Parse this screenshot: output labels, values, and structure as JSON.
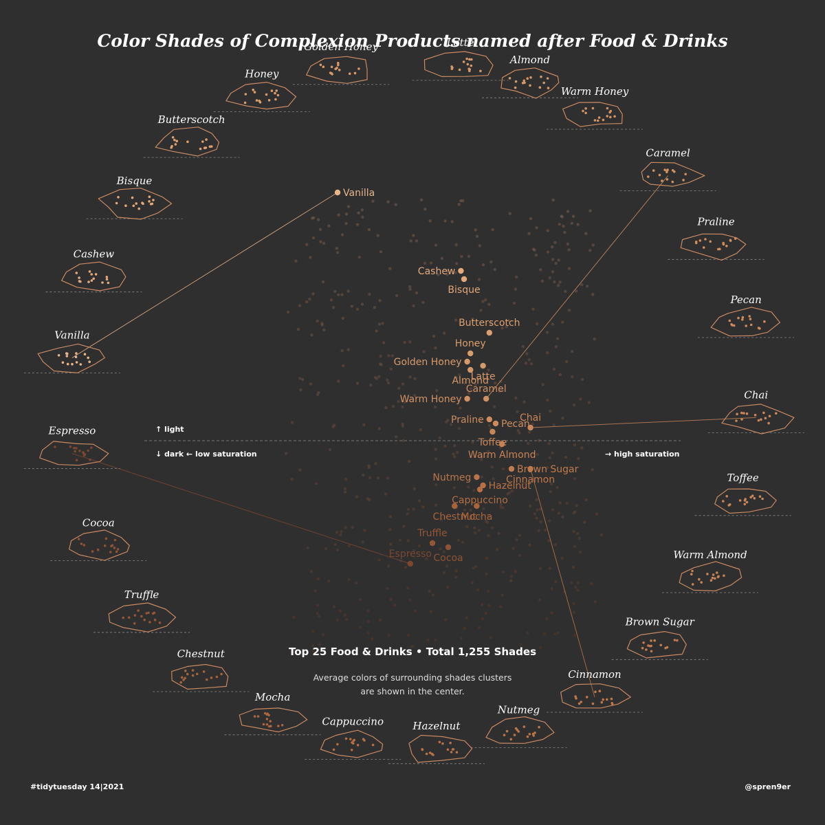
{
  "title": "Color Shades of Complexion Products named after Food & Drinks",
  "axis_notes": {
    "light": "↑  light",
    "dark": "↓  dark   ←  low saturation",
    "high_saturation": "→  high saturation"
  },
  "summary": "Top 25 Food & Drinks  •  Total 1,255 Shades",
  "subnote_line1": "Average colors of surrounding shades clusters",
  "subnote_line2": "are shown in the center.",
  "footer_left": "#tidytuesday 14|2021",
  "footer_right": "@spren9er",
  "colors": {
    "background": "#2f2f2f",
    "outline": "#c98a62",
    "text": "#ffffff"
  },
  "chart_data": {
    "type": "scatter",
    "x_meaning": "saturation (low → high)",
    "y_meaning": "lightness (dark → light)",
    "xlim": [
      0,
      1
    ],
    "ylim": [
      0,
      1
    ],
    "total_shades": 1255,
    "series": [
      {
        "name": "Vanilla",
        "saturation": 0.1,
        "lightness": 0.95,
        "color": "#e8b48a",
        "label_side": "right"
      },
      {
        "name": "Cashew",
        "saturation": 0.49,
        "lightness": 0.76,
        "color": "#e3ab7d",
        "label_side": "left"
      },
      {
        "name": "Bisque",
        "saturation": 0.5,
        "lightness": 0.74,
        "color": "#e2a87a",
        "label_side": "below"
      },
      {
        "name": "Butterscotch",
        "saturation": 0.58,
        "lightness": 0.61,
        "color": "#dca070",
        "label_side": "above"
      },
      {
        "name": "Honey",
        "saturation": 0.52,
        "lightness": 0.56,
        "color": "#d99d6c",
        "label_side": "above"
      },
      {
        "name": "Golden Honey",
        "saturation": 0.51,
        "lightness": 0.54,
        "color": "#d89a6a",
        "label_side": "left"
      },
      {
        "name": "Latte",
        "saturation": 0.56,
        "lightness": 0.53,
        "color": "#d6986a",
        "label_side": "below"
      },
      {
        "name": "Almond",
        "saturation": 0.52,
        "lightness": 0.52,
        "color": "#d59868",
        "label_side": "below"
      },
      {
        "name": "Warm Honey",
        "saturation": 0.51,
        "lightness": 0.45,
        "color": "#d19264",
        "label_side": "left"
      },
      {
        "name": "Caramel",
        "saturation": 0.57,
        "lightness": 0.45,
        "color": "#d09162",
        "label_side": "above"
      },
      {
        "name": "Praline",
        "saturation": 0.58,
        "lightness": 0.4,
        "color": "#cd8d5f",
        "label_side": "left"
      },
      {
        "name": "Pecan",
        "saturation": 0.6,
        "lightness": 0.39,
        "color": "#cc8b5d",
        "label_side": "right"
      },
      {
        "name": "Chai",
        "saturation": 0.71,
        "lightness": 0.38,
        "color": "#c9875a",
        "label_side": "above"
      },
      {
        "name": "Toffee",
        "saturation": 0.59,
        "lightness": 0.37,
        "color": "#c98658",
        "label_side": "below"
      },
      {
        "name": "Warm Almond",
        "saturation": 0.62,
        "lightness": 0.34,
        "color": "#c68355",
        "label_side": "below"
      },
      {
        "name": "Brown Sugar",
        "saturation": 0.65,
        "lightness": 0.28,
        "color": "#c07b4e",
        "label_side": "right"
      },
      {
        "name": "Cinnamon",
        "saturation": 0.71,
        "lightness": 0.28,
        "color": "#bf784b",
        "label_side": "below"
      },
      {
        "name": "Nutmeg",
        "saturation": 0.54,
        "lightness": 0.26,
        "color": "#b9754a",
        "label_side": "left"
      },
      {
        "name": "Hazelnut",
        "saturation": 0.56,
        "lightness": 0.24,
        "color": "#b67147",
        "label_side": "right"
      },
      {
        "name": "Cappuccino",
        "saturation": 0.55,
        "lightness": 0.23,
        "color": "#b36e44",
        "label_side": "below"
      },
      {
        "name": "Mocha",
        "saturation": 0.54,
        "lightness": 0.19,
        "color": "#a9663e",
        "label_side": "below"
      },
      {
        "name": "Chestnut",
        "saturation": 0.47,
        "lightness": 0.19,
        "color": "#a5633c",
        "label_side": "below"
      },
      {
        "name": "Truffle",
        "saturation": 0.4,
        "lightness": 0.1,
        "color": "#935637",
        "label_side": "above"
      },
      {
        "name": "Cocoa",
        "saturation": 0.45,
        "lightness": 0.09,
        "color": "#8f5334",
        "label_side": "below"
      },
      {
        "name": "Espresso",
        "saturation": 0.33,
        "lightness": 0.05,
        "color": "#7a4730",
        "label_side": "above"
      }
    ]
  }
}
